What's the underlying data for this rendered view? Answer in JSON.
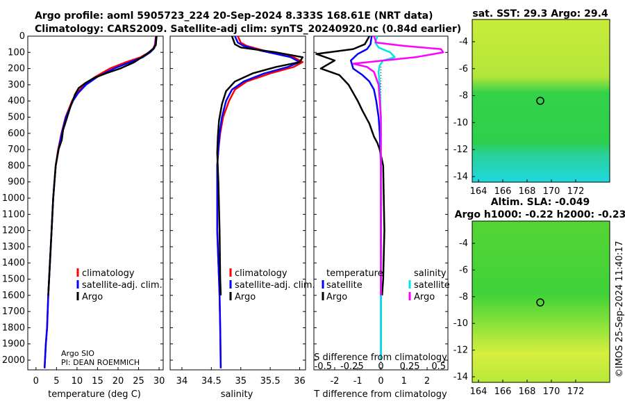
{
  "header": {
    "line1": "Argo profile: aoml 5905723_224 20-Sep-2024 8.333S 168.61E (NRT data)",
    "line2": "Climatology: CARS2009. Satellite-adj clim: synTS_20240920.nc (0.84d earlier)"
  },
  "credit": {
    "line1": "Argo SIO",
    "line2": "PI: DEAN ROEMMICH"
  },
  "footer": "©IMOS 25-Sep-2024 11:40:17",
  "colors": {
    "climatology": "#ff0000",
    "satellite": "#0000ff",
    "argo": "#000000",
    "sat_t": "#00e6e6",
    "sat_s": "#ff00ff",
    "map_green": "#33d633",
    "map_cyan": "#19d9d9"
  },
  "chart_data": [
    {
      "type": "line",
      "id": "temperature",
      "xlabel": "temperature (deg C)",
      "xlim": [
        -2,
        31
      ],
      "xticks": [
        0,
        5,
        10,
        15,
        20,
        25,
        30
      ],
      "ylim": [
        2060,
        0
      ],
      "yticks": [
        0,
        100,
        200,
        300,
        400,
        500,
        600,
        700,
        800,
        900,
        1000,
        1100,
        1200,
        1300,
        1400,
        1500,
        1600,
        1700,
        1800,
        1900,
        2000
      ],
      "legend": [
        "climatology",
        "satellite-adj. clim.",
        "Argo"
      ],
      "series": [
        {
          "name": "climatology",
          "x": [
            29.2,
            29.0,
            28.6,
            27.5,
            25.5,
            22,
            18,
            14.5,
            11.8,
            10,
            8.8,
            7.2,
            6.2,
            5.4,
            4.8,
            4.2,
            3.8,
            3.4,
            3.0,
            2.7,
            2.4,
            2.2,
            2.1
          ],
          "y": [
            0,
            50,
            75,
            100,
            130,
            160,
            200,
            250,
            300,
            350,
            400,
            500,
            600,
            700,
            800,
            1000,
            1200,
            1400,
            1600,
            1800,
            1900,
            2000,
            2050
          ]
        },
        {
          "name": "satellite-adj. clim.",
          "x": [
            29.3,
            29.1,
            28.8,
            27.8,
            26,
            23,
            19,
            15,
            12.2,
            10.3,
            9,
            7.3,
            6.3,
            5.5,
            4.8,
            4.2,
            3.8,
            3.4,
            3.0,
            2.7,
            2.4,
            2.2,
            2.1
          ],
          "y": [
            0,
            50,
            75,
            100,
            130,
            160,
            200,
            250,
            300,
            350,
            400,
            500,
            600,
            700,
            800,
            1000,
            1200,
            1400,
            1600,
            1800,
            1900,
            2000,
            2050
          ]
        },
        {
          "name": "Argo",
          "x": [
            29.4,
            29.2,
            28.5,
            27,
            24,
            20.5,
            17,
            14,
            12,
            10.4,
            9.5,
            8.6,
            7.6,
            6.6,
            6.3,
            5.5,
            4.8,
            4.2,
            3.8,
            3.4,
            3.0
          ],
          "y": [
            0,
            55,
            80,
            110,
            160,
            200,
            230,
            260,
            290,
            320,
            360,
            420,
            500,
            580,
            640,
            700,
            800,
            1000,
            1200,
            1400,
            1600
          ]
        }
      ]
    },
    {
      "type": "line",
      "id": "salinity",
      "xlabel": "salinity",
      "xlim": [
        33.8,
        36.1
      ],
      "xticks": [
        34,
        34.5,
        35,
        35.5,
        36
      ],
      "ylim": [
        2060,
        0
      ],
      "legend": [
        "climatology",
        "satellite-adj. clim.",
        "Argo"
      ],
      "series": [
        {
          "name": "climatology",
          "x": [
            34.95,
            35.0,
            35.1,
            35.4,
            35.9,
            36.05,
            35.9,
            35.5,
            35.1,
            34.9,
            34.8,
            34.7,
            34.65,
            34.62,
            34.6,
            34.6,
            34.6,
            34.62,
            34.64,
            34.65,
            34.66
          ],
          "y": [
            0,
            40,
            60,
            90,
            130,
            160,
            190,
            230,
            280,
            330,
            400,
            500,
            600,
            700,
            800,
            1000,
            1200,
            1400,
            1600,
            1800,
            2050
          ]
        },
        {
          "name": "satellite-adj. clim.",
          "x": [
            34.9,
            34.95,
            35.05,
            35.35,
            35.85,
            36.0,
            35.8,
            35.4,
            35.05,
            34.85,
            34.75,
            34.68,
            34.64,
            34.62,
            34.6,
            34.6,
            34.6,
            34.62,
            34.64,
            34.65,
            34.66
          ],
          "y": [
            0,
            40,
            60,
            90,
            130,
            160,
            190,
            230,
            280,
            330,
            400,
            500,
            600,
            700,
            800,
            1000,
            1200,
            1400,
            1600,
            1800,
            2050
          ]
        },
        {
          "name": "Argo",
          "x": [
            34.85,
            34.9,
            35.0,
            35.6,
            36.05,
            36.0,
            35.6,
            35.2,
            34.9,
            34.75,
            34.68,
            34.63,
            34.61,
            34.6,
            34.62,
            34.64,
            34.65,
            34.66
          ],
          "y": [
            0,
            50,
            70,
            100,
            130,
            160,
            190,
            230,
            280,
            340,
            420,
            520,
            620,
            720,
            900,
            1200,
            1500,
            1600
          ]
        }
      ]
    },
    {
      "type": "line",
      "id": "difference",
      "xlabel": "T difference from climatology",
      "xlabel_top": "S difference from climatology",
      "xlim": [
        -2.9,
        2.9
      ],
      "xticks": [
        -2,
        -1,
        0,
        1,
        2
      ],
      "s_ticks": [
        "-0.5",
        "-0.25",
        "0",
        "0.25",
        "0.5"
      ],
      "ylim": [
        2060,
        0
      ],
      "legend_t": {
        "title": "temperature",
        "items": [
          "satellite",
          "Argo"
        ]
      },
      "legend_s": {
        "title": "salinity",
        "items": [
          "satellite",
          "Argo"
        ]
      },
      "series": [
        {
          "name": "temperature satellite",
          "x": [
            -0.4,
            -0.45,
            -0.6,
            -1.0,
            -1.3,
            -1.2,
            -0.8,
            -0.5,
            -0.3,
            -0.2,
            -0.1,
            -0.05,
            0,
            0,
            0,
            0
          ],
          "y": [
            0,
            50,
            80,
            110,
            150,
            200,
            240,
            280,
            330,
            400,
            500,
            600,
            800,
            1200,
            1600,
            2000
          ]
        },
        {
          "name": "temperature Argo",
          "x": [
            -0.5,
            -0.7,
            -1.2,
            -2.8,
            -2.0,
            -2.6,
            -1.8,
            -1.4,
            -1.0,
            -0.8,
            -0.5,
            -0.3,
            -0.15,
            -0.05,
            0.1,
            0.15,
            0.1,
            0.05
          ],
          "y": [
            0,
            50,
            80,
            110,
            150,
            200,
            240,
            300,
            400,
            460,
            540,
            620,
            660,
            700,
            800,
            1200,
            1500,
            1600
          ]
        },
        {
          "name": "salinity satellite",
          "x": [
            -0.15,
            -0.25,
            -0.1,
            0.4,
            0.6,
            0.1,
            -0.05,
            -0.1,
            -0.05,
            0,
            0,
            0,
            0
          ],
          "y": [
            0,
            40,
            70,
            100,
            130,
            150,
            180,
            220,
            300,
            500,
            800,
            1200,
            2000
          ]
        },
        {
          "name": "salinity Argo",
          "x": [
            -0.3,
            -0.2,
            1.0,
            2.6,
            2.7,
            1.5,
            -1.2,
            -0.6,
            -0.3,
            -0.1,
            0,
            0,
            0
          ],
          "y": [
            0,
            40,
            60,
            80,
            100,
            130,
            170,
            190,
            220,
            300,
            500,
            900,
            1600
          ]
        }
      ]
    }
  ],
  "maps": [
    {
      "title": "sat. SST: 29.3 Argo: 29.4",
      "yticks": [
        "-4",
        "-6",
        "-8",
        "-10",
        "-12",
        "-14"
      ],
      "xticks": [
        "164",
        "166",
        "168",
        "170",
        "172"
      ]
    },
    {
      "title_line1": "Altim. SLA: -0.049",
      "title_line2": "Argo h1000: -0.22 h2000: -0.23",
      "yticks": [
        "-4",
        "-6",
        "-8",
        "-10",
        "-12",
        "-14"
      ],
      "xticks": [
        "164",
        "166",
        "168",
        "170",
        "172"
      ]
    }
  ]
}
